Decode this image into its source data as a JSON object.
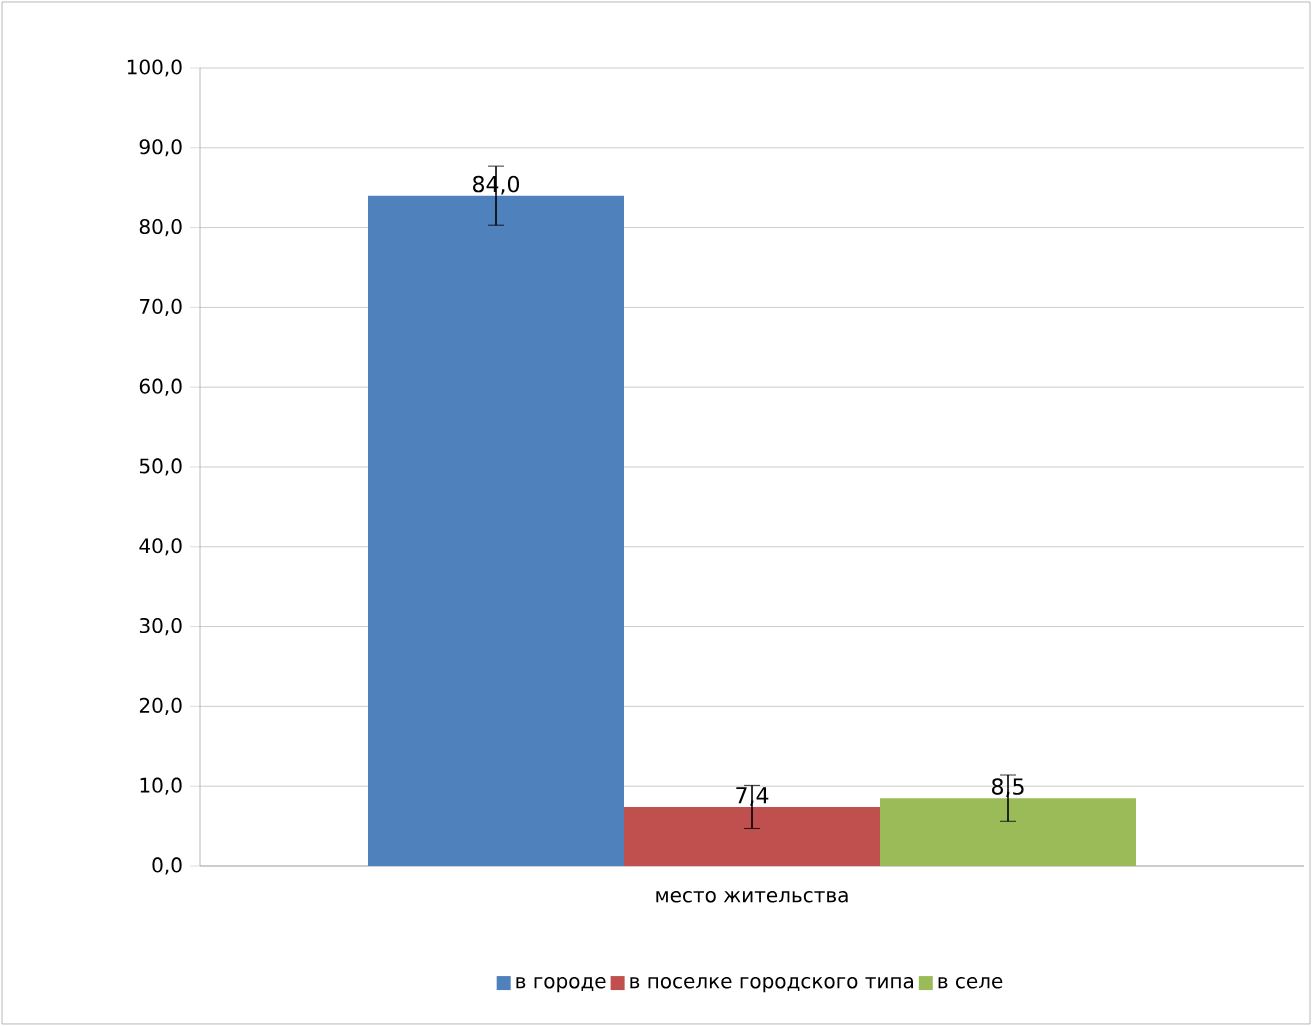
{
  "chart_data": {
    "type": "bar",
    "categories": [
      "место жительства"
    ],
    "series": [
      {
        "name": "в городе",
        "color": "#4f81bd",
        "values": [
          84.0
        ],
        "errors": [
          3.7
        ],
        "value_labels": [
          "84,0"
        ]
      },
      {
        "name": "в поселке городского типа",
        "color": "#c0504d",
        "values": [
          7.4
        ],
        "errors": [
          2.7
        ],
        "value_labels": [
          "7,4"
        ]
      },
      {
        "name": "в селе",
        "color": "#9bbb59",
        "values": [
          8.5
        ],
        "errors": [
          2.9
        ],
        "value_labels": [
          "8,5"
        ]
      }
    ],
    "ylim": [
      0,
      100
    ],
    "yticks": [
      {
        "value": 0,
        "label": "0,0"
      },
      {
        "value": 10,
        "label": "10,0"
      },
      {
        "value": 20,
        "label": "20,0"
      },
      {
        "value": 30,
        "label": "30,0"
      },
      {
        "value": 40,
        "label": "40,0"
      },
      {
        "value": 50,
        "label": "50,0"
      },
      {
        "value": 60,
        "label": "60,0"
      },
      {
        "value": 70,
        "label": "70,0"
      },
      {
        "value": 80,
        "label": "80,0"
      },
      {
        "value": 90,
        "label": "90,0"
      },
      {
        "value": 100,
        "label": "100,0"
      }
    ],
    "grid": "y",
    "legend": "bottom"
  }
}
